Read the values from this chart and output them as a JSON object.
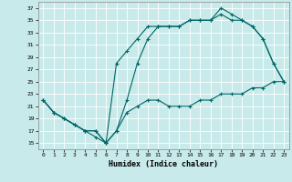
{
  "xlabel": "Humidex (Indice chaleur)",
  "bg_color": "#c8eaea",
  "grid_color": "#ffffff",
  "line_color": "#006666",
  "xlim": [
    -0.5,
    23.5
  ],
  "ylim": [
    14,
    38
  ],
  "xticks": [
    0,
    1,
    2,
    3,
    4,
    5,
    6,
    7,
    8,
    9,
    10,
    11,
    12,
    13,
    14,
    15,
    16,
    17,
    18,
    19,
    20,
    21,
    22,
    23
  ],
  "yticks": [
    15,
    17,
    19,
    21,
    23,
    25,
    27,
    29,
    31,
    33,
    35,
    37
  ],
  "line1_x": [
    0,
    1,
    2,
    3,
    4,
    5,
    6,
    7,
    8,
    9,
    10,
    11,
    12,
    13,
    14,
    15,
    16,
    17,
    18,
    19,
    20,
    21,
    22,
    23
  ],
  "line1_y": [
    22,
    20,
    19,
    18,
    17,
    16,
    15,
    17,
    20,
    21,
    22,
    22,
    21,
    21,
    21,
    22,
    22,
    23,
    23,
    23,
    24,
    24,
    25,
    25
  ],
  "line2_x": [
    0,
    1,
    2,
    3,
    4,
    5,
    6,
    7,
    8,
    9,
    10,
    11,
    12,
    13,
    14,
    15,
    16,
    17,
    18,
    19,
    20,
    21,
    22,
    23
  ],
  "line2_y": [
    22,
    20,
    19,
    18,
    17,
    17,
    15,
    28,
    30,
    32,
    34,
    34,
    34,
    34,
    35,
    35,
    35,
    37,
    36,
    35,
    34,
    32,
    28,
    25
  ],
  "line3_x": [
    0,
    1,
    2,
    3,
    4,
    5,
    6,
    7,
    8,
    9,
    10,
    11,
    12,
    13,
    14,
    15,
    16,
    17,
    18,
    19,
    20,
    21,
    22,
    23
  ],
  "line3_y": [
    22,
    20,
    19,
    18,
    17,
    17,
    15,
    17,
    22,
    28,
    32,
    34,
    34,
    34,
    35,
    35,
    35,
    36,
    35,
    35,
    34,
    32,
    28,
    25
  ]
}
